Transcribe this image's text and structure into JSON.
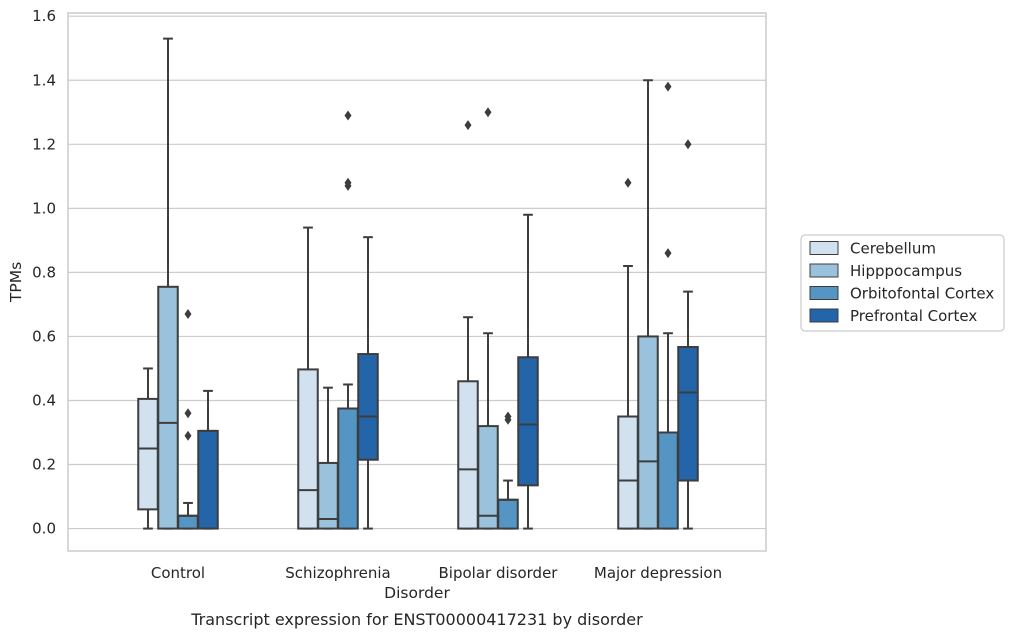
{
  "chart_data": {
    "type": "box",
    "title": "",
    "xlabel": "Disorder",
    "ylabel": "TPMs",
    "caption": "Transcript expression for ENST00000417231 by disorder",
    "ylim": [
      -0.07,
      1.61
    ],
    "yticks": [
      0.0,
      0.2,
      0.4,
      0.6,
      0.8,
      1.0,
      1.2,
      1.4,
      1.6
    ],
    "ytick_labels": [
      "0.0",
      "0.2",
      "0.4",
      "0.6",
      "0.8",
      "1.0",
      "1.2",
      "1.4",
      "1.6"
    ],
    "grid": true,
    "legend_position": "right",
    "categories": [
      "Control",
      "Schizophrenia",
      "Bipolar disorder",
      "Major depression"
    ],
    "series": [
      {
        "name": "Cerebellum",
        "color": "#d1e1f0",
        "boxes": [
          {
            "whisker_low": 0.0,
            "q1": 0.06,
            "median": 0.25,
            "q3": 0.405,
            "whisker_high": 0.5,
            "outliers": []
          },
          {
            "whisker_low": 0.0,
            "q1": 0.0,
            "median": 0.12,
            "q3": 0.497,
            "whisker_high": 0.94,
            "outliers": []
          },
          {
            "whisker_low": 0.0,
            "q1": 0.0,
            "median": 0.185,
            "q3": 0.46,
            "whisker_high": 0.66,
            "outliers": [
              1.26
            ]
          },
          {
            "whisker_low": 0.0,
            "q1": 0.0,
            "median": 0.15,
            "q3": 0.35,
            "whisker_high": 0.82,
            "outliers": [
              1.08
            ]
          }
        ]
      },
      {
        "name": "Hipppocampus",
        "color": "#9ac2dc",
        "boxes": [
          {
            "whisker_low": 0.0,
            "q1": 0.0,
            "median": 0.33,
            "q3": 0.755,
            "whisker_high": 1.53,
            "outliers": []
          },
          {
            "whisker_low": 0.0,
            "q1": 0.0,
            "median": 0.03,
            "q3": 0.205,
            "whisker_high": 0.44,
            "outliers": []
          },
          {
            "whisker_low": 0.0,
            "q1": 0.0,
            "median": 0.04,
            "q3": 0.32,
            "whisker_high": 0.61,
            "outliers": [
              1.3
            ]
          },
          {
            "whisker_low": 0.0,
            "q1": 0.0,
            "median": 0.21,
            "q3": 0.6,
            "whisker_high": 1.4,
            "outliers": []
          }
        ]
      },
      {
        "name": "Orbitofontal Cortex",
        "color": "#5595c4",
        "boxes": [
          {
            "whisker_low": 0.0,
            "q1": 0.0,
            "median": 0.04,
            "q3": 0.04,
            "whisker_high": 0.08,
            "outliers": [
              0.29,
              0.36,
              0.67
            ]
          },
          {
            "whisker_low": 0.0,
            "q1": 0.0,
            "median": 0.375,
            "q3": 0.375,
            "whisker_high": 0.45,
            "outliers": [
              1.07,
              1.08,
              1.29
            ]
          },
          {
            "whisker_low": 0.0,
            "q1": 0.0,
            "median": 0.09,
            "q3": 0.09,
            "whisker_high": 0.15,
            "outliers": [
              0.34,
              0.35
            ]
          },
          {
            "whisker_low": 0.0,
            "q1": 0.0,
            "median": 0.3,
            "q3": 0.3,
            "whisker_high": 0.61,
            "outliers": [
              0.86,
              1.38
            ]
          }
        ]
      },
      {
        "name": "Prefrontal Cortex",
        "color": "#2464a8",
        "boxes": [
          {
            "whisker_low": 0.0,
            "q1": 0.0,
            "median": 0.305,
            "q3": 0.305,
            "whisker_high": 0.43,
            "outliers": []
          },
          {
            "whisker_low": 0.0,
            "q1": 0.215,
            "median": 0.35,
            "q3": 0.545,
            "whisker_high": 0.91,
            "outliers": []
          },
          {
            "whisker_low": 0.0,
            "q1": 0.135,
            "median": 0.325,
            "q3": 0.535,
            "whisker_high": 0.98,
            "outliers": []
          },
          {
            "whisker_low": 0.0,
            "q1": 0.15,
            "median": 0.425,
            "q3": 0.567,
            "whisker_high": 0.74,
            "outliers": [
              1.2
            ]
          }
        ]
      }
    ]
  }
}
